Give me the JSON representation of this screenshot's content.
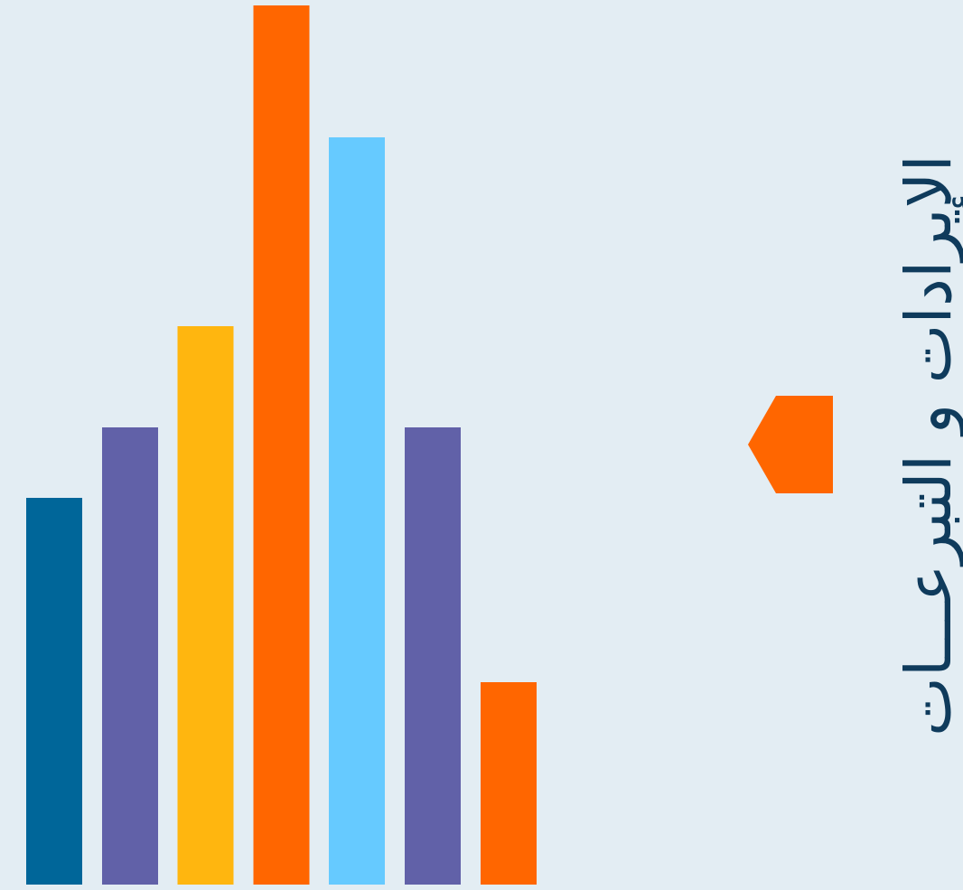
{
  "colors": {
    "background": "#e3edf3",
    "title": "#0f3b5c",
    "marker": "#ff6600"
  },
  "marker": {
    "icon": "orange-pentagon-marker"
  },
  "chart_data": {
    "type": "bar",
    "title": "الإيرادات و التبرعـــات",
    "xlabel": "",
    "ylabel": "",
    "ylim": [
      0,
      100
    ],
    "grid": false,
    "legend": "none",
    "categories": [
      "",
      "",
      "",
      "",
      "",
      "",
      ""
    ],
    "values": [
      44,
      52,
      63.5,
      100,
      85,
      52,
      23
    ],
    "bar_colors": [
      "#006699",
      "#6161a8",
      "#ffb60f",
      "#ff6600",
      "#66caff",
      "#6161a8",
      "#ff6600"
    ]
  }
}
